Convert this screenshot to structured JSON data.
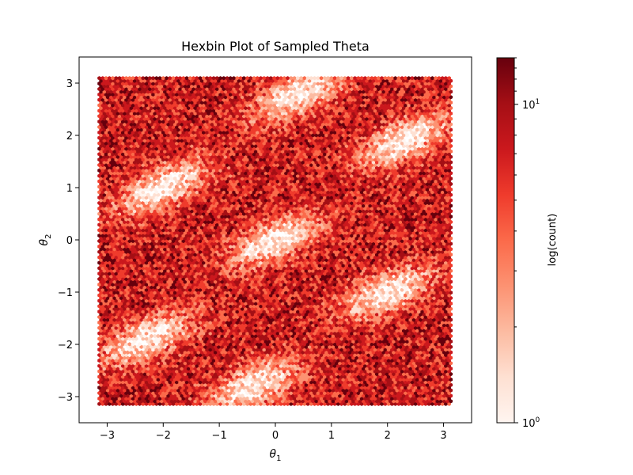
{
  "chart_data": {
    "type": "heatmap",
    "subtype": "hexbin",
    "title": "Hexbin Plot of Sampled Theta",
    "xlabel": "θ",
    "xlabel_subscript": "1",
    "ylabel": "θ",
    "ylabel_subscript": "2",
    "xlim": [
      -3.5,
      3.5
    ],
    "ylim": [
      -3.5,
      3.5
    ],
    "xticks": [
      -3,
      -2,
      -1,
      0,
      1,
      2,
      3
    ],
    "yticks": [
      -3,
      -2,
      -1,
      0,
      1,
      2,
      3
    ],
    "xtick_labels": [
      "−3",
      "−2",
      "−1",
      "0",
      "1",
      "2",
      "3"
    ],
    "ytick_labels": [
      "−3",
      "−2",
      "−1",
      "0",
      "1",
      "2",
      "3"
    ],
    "data_extent": {
      "x": [
        -3.14,
        3.14
      ],
      "y": [
        -3.14,
        3.14
      ]
    },
    "colormap": "Reds",
    "color_scale": "log",
    "colorbar": {
      "label": "log(count)",
      "range": [
        1,
        14
      ],
      "tick_base": "10",
      "ticks": [
        {
          "value": 1,
          "exponent": "0"
        },
        {
          "value": 10,
          "exponent": "1"
        }
      ]
    },
    "density_bands_description": "dense diagonal bands with slope ~0.5 separated by low-density elliptical holes",
    "low_density_regions": [
      {
        "x": -2.0,
        "y": 1.0
      },
      {
        "x": 0.0,
        "y": 0.0
      },
      {
        "x": 2.0,
        "y": -1.0
      },
      {
        "x": 2.3,
        "y": 1.9
      },
      {
        "x": -2.3,
        "y": -1.9
      },
      {
        "x": 0.4,
        "y": 2.8
      },
      {
        "x": -0.4,
        "y": -2.8
      }
    ],
    "grid": false,
    "legend": "colorbar-right"
  },
  "colors": {
    "low": "#fff5f0",
    "mid": "#fb6a4a",
    "high": "#67000d",
    "axis": "#000000",
    "background": "#ffffff"
  }
}
